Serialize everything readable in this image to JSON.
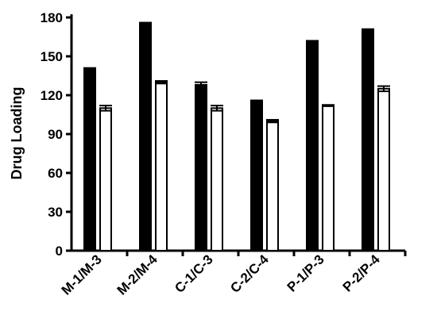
{
  "chart_data": {
    "type": "bar",
    "title": "",
    "xlabel": "",
    "ylabel": "Drug Loading",
    "ylim": [
      0,
      180
    ],
    "yticks": [
      0,
      30,
      60,
      90,
      120,
      150,
      180
    ],
    "categories": [
      "M-1/M-3",
      "M-2/M-4",
      "C-1/C-3",
      "C-2/C-4",
      "P-1/P-3",
      "P-2/P-4"
    ],
    "series": [
      {
        "values": [
          140,
          175,
          128,
          115,
          161,
          170
        ],
        "errors": [
          1,
          1,
          2,
          1,
          1,
          1
        ],
        "color": "#000000"
      },
      {
        "values": [
          110,
          130,
          110,
          100,
          112,
          125
        ],
        "errors": [
          2,
          1,
          2,
          1,
          0.5,
          2
        ],
        "color": "#ffffff"
      }
    ],
    "grid": false,
    "legend": "none"
  }
}
